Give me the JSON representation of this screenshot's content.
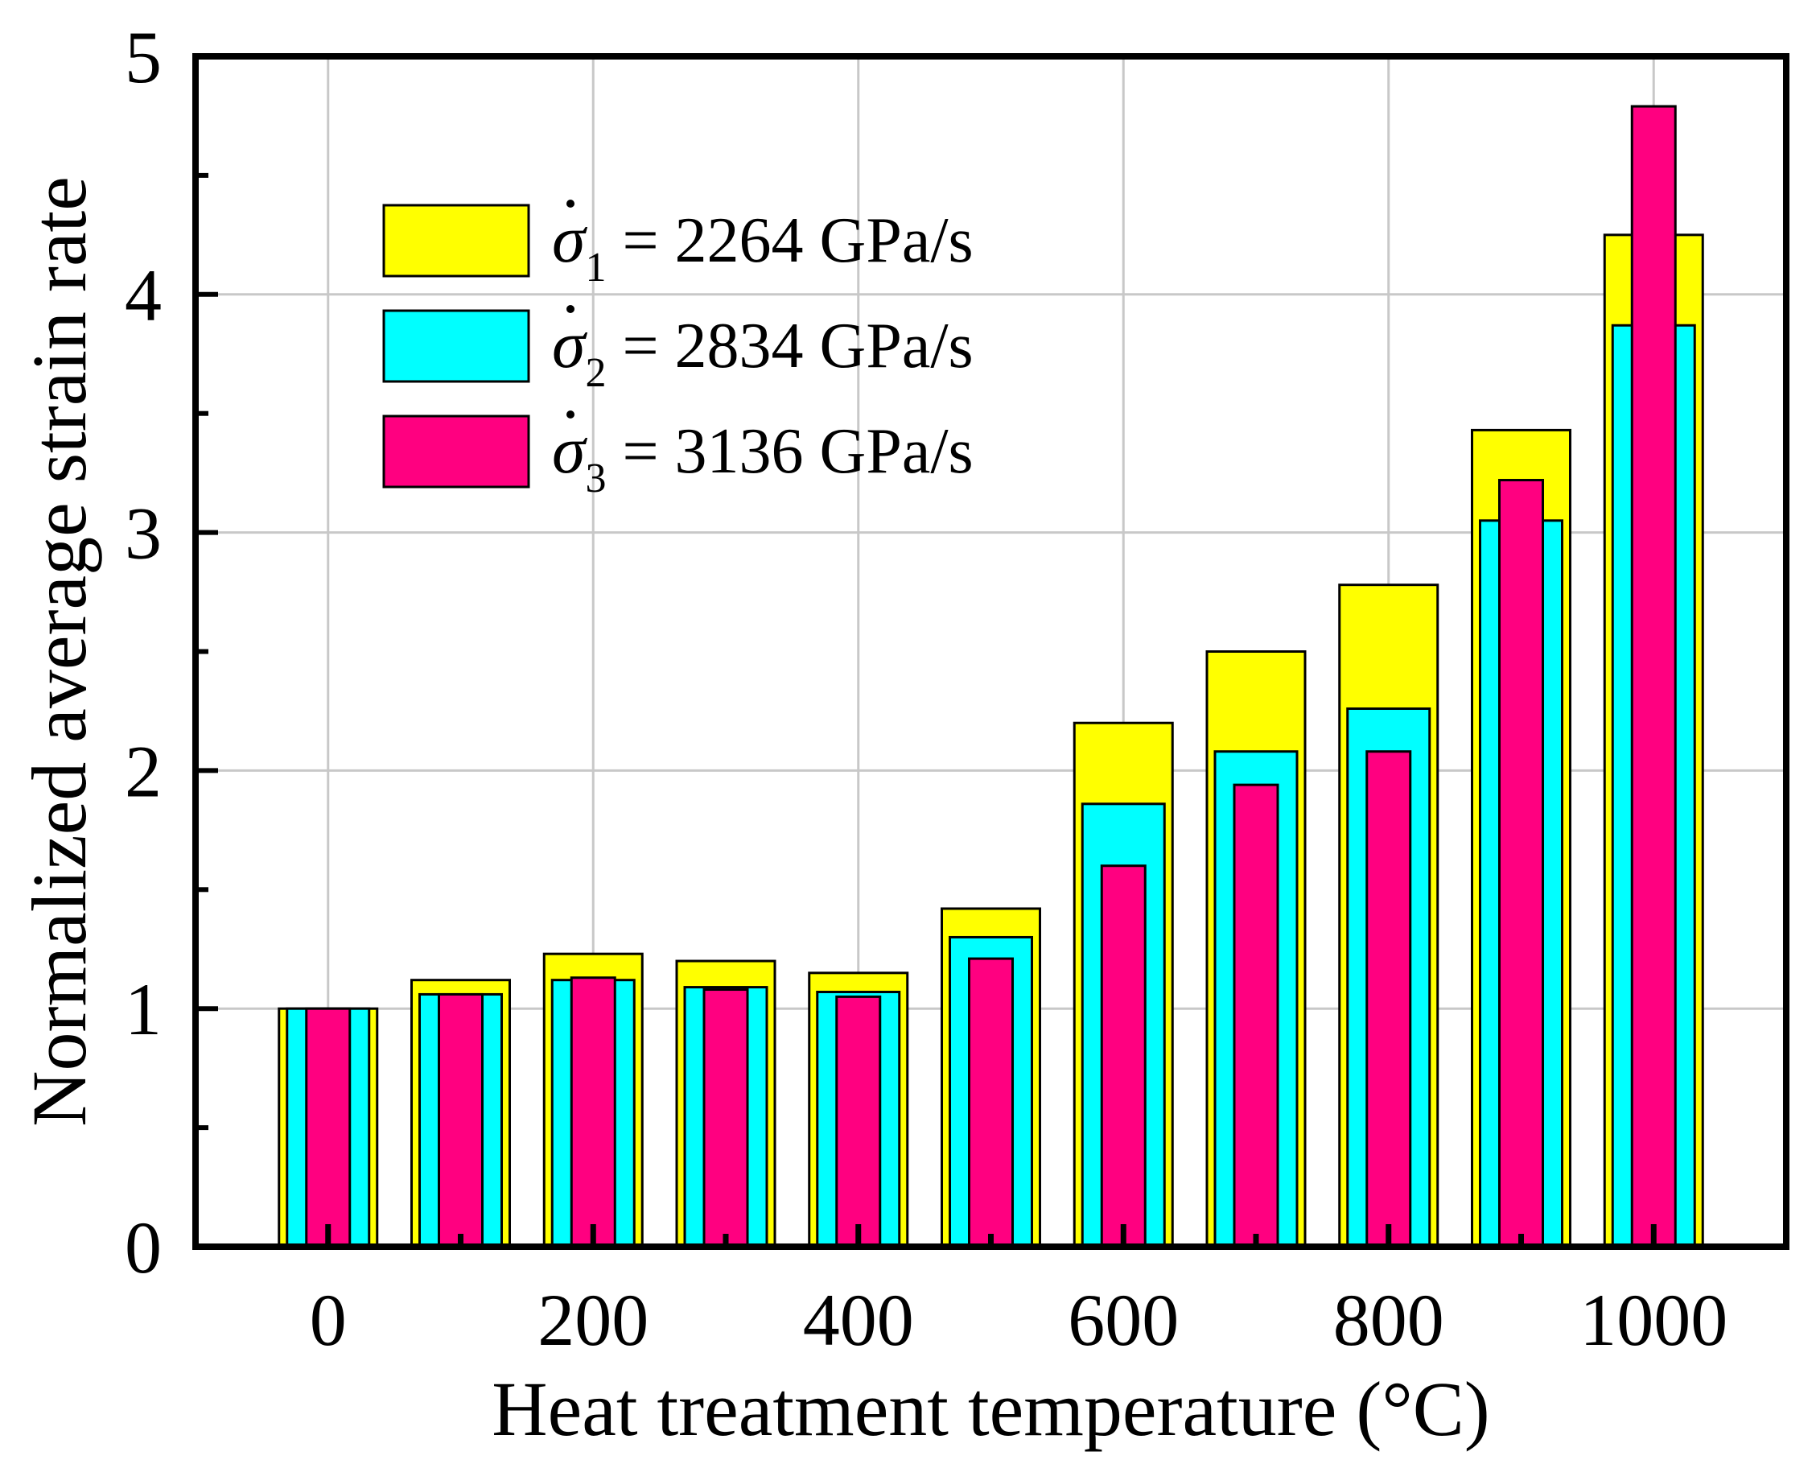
{
  "chart_data": {
    "type": "bar",
    "layout": "overlapping-nested",
    "title": "",
    "xlabel": "Heat treatment temperature (°C)",
    "ylabel": "Normalized average strain rate",
    "categories": [
      0,
      100,
      200,
      300,
      400,
      500,
      600,
      700,
      800,
      900,
      1000
    ],
    "x_ticks": [
      "0",
      "200",
      "400",
      "600",
      "800",
      "1000"
    ],
    "x_tick_values": [
      0,
      200,
      400,
      600,
      800,
      1000
    ],
    "xlim": [
      -100,
      1100
    ],
    "ylim": [
      0,
      5
    ],
    "y_ticks": [
      "0",
      "1",
      "2",
      "3",
      "4",
      "5"
    ],
    "y_tick_values": [
      0,
      1,
      2,
      3,
      4,
      5
    ],
    "grid": true,
    "legend_position": "top-left",
    "series": [
      {
        "name": "σ̇1 = 2264 GPa/s",
        "symbol": "σ",
        "subscript": "1",
        "label_text": " = 2264 GPa/s",
        "color": "#ffff00",
        "values": [
          1.0,
          1.12,
          1.23,
          1.2,
          1.15,
          1.42,
          2.2,
          2.5,
          2.78,
          3.43,
          4.25
        ]
      },
      {
        "name": "σ̇2 = 2834 GPa/s",
        "symbol": "σ",
        "subscript": "2",
        "label_text": " = 2834 GPa/s",
        "color": "#00ffff",
        "values": [
          1.0,
          1.06,
          1.12,
          1.09,
          1.07,
          1.3,
          1.86,
          2.08,
          2.26,
          3.05,
          3.87
        ]
      },
      {
        "name": "σ̇3 = 3136 GPa/s",
        "symbol": "σ",
        "subscript": "3",
        "label_text": " = 3136 GPa/s",
        "color": "#ff0080",
        "values": [
          1.0,
          1.06,
          1.13,
          1.08,
          1.05,
          1.21,
          1.6,
          1.94,
          2.08,
          3.22,
          4.79
        ]
      }
    ]
  }
}
